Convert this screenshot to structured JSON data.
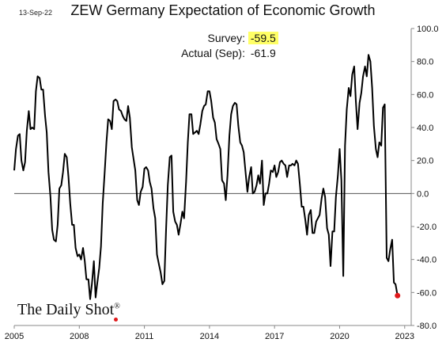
{
  "header": {
    "date": "13-Sep-22",
    "title": "ZEW Germany Expectation of Economic Growth"
  },
  "readout": {
    "survey_label": "Survey:",
    "survey_value": "-59.5",
    "actual_label": "Actual (Sep):",
    "actual_value": "-61.9"
  },
  "watermark": {
    "text": "The Daily Shot",
    "mark": "®"
  },
  "colors": {
    "line": "#000000",
    "zero_line": "#555555",
    "highlight": "#ffff66",
    "last_point": "#e0191b"
  },
  "chart_data": {
    "type": "line",
    "title": "ZEW Germany Expectation of Economic Growth",
    "xlabel": "",
    "ylabel": "",
    "ylim": [
      -80,
      100
    ],
    "xlim": [
      2005.0,
      2023.3
    ],
    "y_ticks": [
      100,
      80,
      60,
      40,
      20,
      0,
      -20,
      -40,
      -60,
      -80
    ],
    "y_tick_labels": [
      "100.0",
      "80.0",
      "60.0",
      "40.0",
      "20.0",
      "0.0",
      "-20.0",
      "-40.0",
      "-60.0",
      "-80.0"
    ],
    "x_ticks": [
      2005,
      2008,
      2011,
      2014,
      2017,
      2020,
      2023
    ],
    "x_tick_labels": [
      "2005",
      "2008",
      "2011",
      "2014",
      "2017",
      "2020",
      "2023"
    ],
    "grid": false,
    "reference_line_y": 0,
    "series": [
      {
        "values": [
          [
            2005.0,
            14
          ],
          [
            2005.08,
            27
          ],
          [
            2005.17,
            35
          ],
          [
            2005.25,
            36
          ],
          [
            2005.33,
            20
          ],
          [
            2005.42,
            14
          ],
          [
            2005.5,
            19
          ],
          [
            2005.58,
            38
          ],
          [
            2005.67,
            50
          ],
          [
            2005.75,
            39
          ],
          [
            2005.83,
            40
          ],
          [
            2005.92,
            39
          ],
          [
            2006.0,
            62
          ],
          [
            2006.08,
            71
          ],
          [
            2006.17,
            70
          ],
          [
            2006.25,
            63
          ],
          [
            2006.33,
            63
          ],
          [
            2006.42,
            47
          ],
          [
            2006.5,
            37
          ],
          [
            2006.58,
            13
          ],
          [
            2006.67,
            -2
          ],
          [
            2006.75,
            -22
          ],
          [
            2006.83,
            -28
          ],
          [
            2006.92,
            -29
          ],
          [
            2007.0,
            -19
          ],
          [
            2007.08,
            3
          ],
          [
            2007.17,
            5
          ],
          [
            2007.25,
            13
          ],
          [
            2007.33,
            24
          ],
          [
            2007.42,
            22
          ],
          [
            2007.5,
            10
          ],
          [
            2007.58,
            -6
          ],
          [
            2007.67,
            -19
          ],
          [
            2007.75,
            -19
          ],
          [
            2007.83,
            -33
          ],
          [
            2007.92,
            -38
          ],
          [
            2008.0,
            -37
          ],
          [
            2008.08,
            -40
          ],
          [
            2008.17,
            -33
          ],
          [
            2008.25,
            -41
          ],
          [
            2008.33,
            -52
          ],
          [
            2008.42,
            -52
          ],
          [
            2008.5,
            -64
          ],
          [
            2008.58,
            -55
          ],
          [
            2008.67,
            -41
          ],
          [
            2008.75,
            -63
          ],
          [
            2008.83,
            -54
          ],
          [
            2008.92,
            -45
          ],
          [
            2009.0,
            -32
          ],
          [
            2009.08,
            -6
          ],
          [
            2009.17,
            13
          ],
          [
            2009.25,
            31
          ],
          [
            2009.33,
            45
          ],
          [
            2009.42,
            44
          ],
          [
            2009.5,
            39
          ],
          [
            2009.58,
            56
          ],
          [
            2009.67,
            57
          ],
          [
            2009.75,
            56
          ],
          [
            2009.83,
            51
          ],
          [
            2009.92,
            50
          ],
          [
            2010.0,
            47
          ],
          [
            2010.08,
            45
          ],
          [
            2010.17,
            44
          ],
          [
            2010.25,
            53
          ],
          [
            2010.33,
            46
          ],
          [
            2010.42,
            28
          ],
          [
            2010.5,
            21
          ],
          [
            2010.58,
            14
          ],
          [
            2010.67,
            -4
          ],
          [
            2010.75,
            -7
          ],
          [
            2010.83,
            1
          ],
          [
            2010.92,
            4
          ],
          [
            2011.0,
            15
          ],
          [
            2011.08,
            16
          ],
          [
            2011.17,
            14
          ],
          [
            2011.25,
            7
          ],
          [
            2011.33,
            3
          ],
          [
            2011.42,
            -9
          ],
          [
            2011.5,
            -15
          ],
          [
            2011.58,
            -37
          ],
          [
            2011.67,
            -43
          ],
          [
            2011.75,
            -48
          ],
          [
            2011.83,
            -55
          ],
          [
            2011.92,
            -53
          ],
          [
            2012.0,
            -22
          ],
          [
            2012.08,
            5
          ],
          [
            2012.17,
            22
          ],
          [
            2012.25,
            23
          ],
          [
            2012.33,
            -11
          ],
          [
            2012.42,
            -17
          ],
          [
            2012.5,
            -19
          ],
          [
            2012.58,
            -25
          ],
          [
            2012.67,
            -18
          ],
          [
            2012.75,
            -11
          ],
          [
            2012.83,
            -15
          ],
          [
            2012.92,
            7
          ],
          [
            2013.0,
            31
          ],
          [
            2013.08,
            48
          ],
          [
            2013.17,
            48
          ],
          [
            2013.25,
            36
          ],
          [
            2013.33,
            37
          ],
          [
            2013.42,
            38
          ],
          [
            2013.5,
            36
          ],
          [
            2013.58,
            42
          ],
          [
            2013.67,
            50
          ],
          [
            2013.75,
            53
          ],
          [
            2013.83,
            54
          ],
          [
            2013.92,
            62
          ],
          [
            2014.0,
            62
          ],
          [
            2014.08,
            56
          ],
          [
            2014.17,
            46
          ],
          [
            2014.25,
            43
          ],
          [
            2014.33,
            33
          ],
          [
            2014.42,
            30
          ],
          [
            2014.5,
            27
          ],
          [
            2014.58,
            8
          ],
          [
            2014.67,
            6
          ],
          [
            2014.75,
            -4
          ],
          [
            2014.83,
            11
          ],
          [
            2014.92,
            35
          ],
          [
            2015.0,
            48
          ],
          [
            2015.08,
            53
          ],
          [
            2015.17,
            55
          ],
          [
            2015.25,
            54
          ],
          [
            2015.33,
            41
          ],
          [
            2015.42,
            31
          ],
          [
            2015.5,
            29
          ],
          [
            2015.58,
            25
          ],
          [
            2015.67,
            12
          ],
          [
            2015.75,
            1
          ],
          [
            2015.83,
            10
          ],
          [
            2015.92,
            16
          ],
          [
            2016.0,
            0
          ],
          [
            2016.08,
            1
          ],
          [
            2016.17,
            5
          ],
          [
            2016.25,
            11
          ],
          [
            2016.33,
            6
          ],
          [
            2016.42,
            20
          ],
          [
            2016.5,
            -7
          ],
          [
            2016.58,
            0
          ],
          [
            2016.67,
            0
          ],
          [
            2016.75,
            6
          ],
          [
            2016.83,
            14
          ],
          [
            2016.92,
            13
          ],
          [
            2017.0,
            17
          ],
          [
            2017.08,
            10
          ],
          [
            2017.17,
            13
          ],
          [
            2017.25,
            19
          ],
          [
            2017.33,
            20
          ],
          [
            2017.42,
            18
          ],
          [
            2017.5,
            17
          ],
          [
            2017.58,
            10
          ],
          [
            2017.67,
            17
          ],
          [
            2017.75,
            17
          ],
          [
            2017.83,
            18
          ],
          [
            2017.92,
            17
          ],
          [
            2018.0,
            20
          ],
          [
            2018.08,
            18
          ],
          [
            2018.17,
            5
          ],
          [
            2018.25,
            -8
          ],
          [
            2018.33,
            -8
          ],
          [
            2018.42,
            -16
          ],
          [
            2018.5,
            -25
          ],
          [
            2018.58,
            -13
          ],
          [
            2018.67,
            -10
          ],
          [
            2018.75,
            -24
          ],
          [
            2018.83,
            -24
          ],
          [
            2018.92,
            -17
          ],
          [
            2019.0,
            -15
          ],
          [
            2019.08,
            -13
          ],
          [
            2019.17,
            -3
          ],
          [
            2019.25,
            3
          ],
          [
            2019.33,
            -2
          ],
          [
            2019.42,
            -21
          ],
          [
            2019.5,
            -25
          ],
          [
            2019.58,
            -44
          ],
          [
            2019.67,
            -23
          ],
          [
            2019.75,
            -23
          ],
          [
            2019.83,
            -2
          ],
          [
            2019.92,
            11
          ],
          [
            2020.0,
            27
          ],
          [
            2020.08,
            8
          ],
          [
            2020.17,
            -50
          ],
          [
            2020.25,
            29
          ],
          [
            2020.33,
            51
          ],
          [
            2020.42,
            64
          ],
          [
            2020.5,
            59
          ],
          [
            2020.58,
            72
          ],
          [
            2020.67,
            77
          ],
          [
            2020.75,
            56
          ],
          [
            2020.83,
            39
          ],
          [
            2020.92,
            55
          ],
          [
            2021.0,
            61
          ],
          [
            2021.08,
            71
          ],
          [
            2021.17,
            77
          ],
          [
            2021.25,
            71
          ],
          [
            2021.33,
            84
          ],
          [
            2021.42,
            80
          ],
          [
            2021.5,
            64
          ],
          [
            2021.58,
            41
          ],
          [
            2021.67,
            27
          ],
          [
            2021.75,
            22
          ],
          [
            2021.83,
            31
          ],
          [
            2021.92,
            29
          ],
          [
            2022.0,
            52
          ],
          [
            2022.08,
            54
          ],
          [
            2022.17,
            -39
          ],
          [
            2022.25,
            -41
          ],
          [
            2022.33,
            -34
          ],
          [
            2022.42,
            -28
          ],
          [
            2022.5,
            -54
          ],
          [
            2022.58,
            -55
          ],
          [
            2022.67,
            -61.9
          ]
        ]
      }
    ],
    "last_point": {
      "x": 2022.67,
      "y": -61.9
    }
  }
}
